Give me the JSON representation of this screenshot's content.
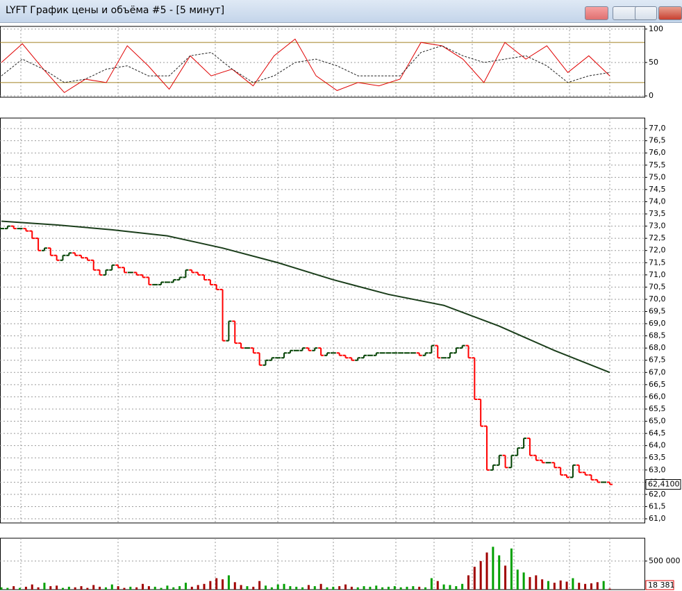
{
  "window": {
    "title": "LYFT График цены и объёма #5 - [5 минут]"
  },
  "chart_data": [
    {
      "type": "line",
      "ylim": [
        -2,
        104
      ],
      "yticks": [
        0,
        50,
        100
      ],
      "levels": [
        20,
        80
      ],
      "level_color": "#a08020",
      "series": [
        {
          "color": "#e00000",
          "dash": false,
          "values": [
            50,
            78,
            40,
            5,
            25,
            20,
            75,
            45,
            10,
            60,
            30,
            40,
            15,
            60,
            85,
            30,
            8,
            20,
            15,
            25,
            80,
            75,
            55,
            20,
            80,
            55,
            75,
            35,
            60,
            30
          ]
        },
        {
          "color": "#202020",
          "dash": true,
          "values": [
            30,
            55,
            40,
            20,
            25,
            40,
            45,
            30,
            30,
            60,
            65,
            40,
            20,
            30,
            50,
            55,
            45,
            30,
            30,
            30,
            65,
            75,
            60,
            50,
            55,
            60,
            45,
            20,
            30,
            35
          ]
        }
      ]
    },
    {
      "type": "price",
      "ylim": [
        60.83,
        77.43
      ],
      "yticks": [
        {
          "value": 61,
          "label": "61,0"
        },
        {
          "value": 61.5,
          "label": "61,5"
        },
        {
          "value": 62,
          "label": "62,0"
        },
        {
          "value": 62.5,
          "label": "62,5"
        },
        {
          "value": 63,
          "label": "63,0"
        },
        {
          "value": 63.5,
          "label": "63,5"
        },
        {
          "value": 64,
          "label": "64,0"
        },
        {
          "value": 64.5,
          "label": "64,5"
        },
        {
          "value": 65,
          "label": "65,0"
        },
        {
          "value": 65.5,
          "label": "65,5"
        },
        {
          "value": 66,
          "label": "66,0"
        },
        {
          "value": 66.5,
          "label": "66,5"
        },
        {
          "value": 67,
          "label": "67,0"
        },
        {
          "value": 67.5,
          "label": "67,5"
        },
        {
          "value": 68,
          "label": "68,0"
        },
        {
          "value": 68.5,
          "label": "68,5"
        },
        {
          "value": 69,
          "label": "69,0"
        },
        {
          "value": 69.5,
          "label": "69,5"
        },
        {
          "value": 70,
          "label": "70,0"
        },
        {
          "value": 70.5,
          "label": "70,5"
        },
        {
          "value": 71,
          "label": "71,0"
        },
        {
          "value": 71.5,
          "label": "71,5"
        },
        {
          "value": 72,
          "label": "72,0"
        },
        {
          "value": 72.5,
          "label": "72,5"
        },
        {
          "value": 73,
          "label": "73,0"
        },
        {
          "value": 73.5,
          "label": "73,5"
        },
        {
          "value": 74,
          "label": "74,0"
        },
        {
          "value": 74.5,
          "label": "74,5"
        },
        {
          "value": 75,
          "label": "75,0"
        },
        {
          "value": 75.5,
          "label": "75,5"
        },
        {
          "value": 76,
          "label": "76,0"
        },
        {
          "value": 76.5,
          "label": "76,5"
        },
        {
          "value": 77,
          "label": "77,0"
        }
      ],
      "up_color": "#004000",
      "down_color": "#ff0000",
      "ma_color": "#1a3d1a",
      "values": [
        72.9,
        73.0,
        72.9,
        72.9,
        72.8,
        72.5,
        72.0,
        72.1,
        71.8,
        71.6,
        71.8,
        71.9,
        71.8,
        71.7,
        71.6,
        71.2,
        71.0,
        71.2,
        71.4,
        71.3,
        71.1,
        71.1,
        71.0,
        70.9,
        70.6,
        70.6,
        70.7,
        70.7,
        70.8,
        70.9,
        71.2,
        71.1,
        71.0,
        70.8,
        70.6,
        70.4,
        68.3,
        69.1,
        68.2,
        68.0,
        68.0,
        67.8,
        67.3,
        67.5,
        67.6,
        67.6,
        67.8,
        67.9,
        67.9,
        68.0,
        67.9,
        68.0,
        67.7,
        67.8,
        67.8,
        67.7,
        67.6,
        67.5,
        67.6,
        67.7,
        67.7,
        67.8,
        67.8,
        67.8,
        67.8,
        67.8,
        67.8,
        67.8,
        67.7,
        67.8,
        68.1,
        67.6,
        67.6,
        67.8,
        68.0,
        68.1,
        67.6,
        65.9,
        64.8,
        63.0,
        63.2,
        63.6,
        63.1,
        63.6,
        63.9,
        64.3,
        63.6,
        63.4,
        63.3,
        63.3,
        63.1,
        62.8,
        62.7,
        63.2,
        62.9,
        62.8,
        62.6,
        62.5,
        62.5,
        62.41
      ],
      "ma": [
        73.2,
        73.05,
        72.85,
        72.6,
        72.1,
        71.5,
        70.8,
        70.2,
        69.75,
        68.9,
        67.9,
        67.0
      ],
      "last": {
        "value": 62.41,
        "label": "62,4100"
      }
    },
    {
      "type": "volume",
      "ylim": [
        0,
        900000
      ],
      "yticks": [
        {
          "value": 500000,
          "label": "500 000"
        }
      ],
      "up_color": "#00a000",
      "down_color": "#a00000",
      "values": [
        40000,
        30000,
        60000,
        30000,
        50000,
        90000,
        40000,
        120000,
        60000,
        70000,
        30000,
        50000,
        40000,
        60000,
        30000,
        80000,
        50000,
        40000,
        90000,
        60000,
        30000,
        50000,
        40000,
        100000,
        60000,
        50000,
        30000,
        70000,
        40000,
        60000,
        120000,
        50000,
        80000,
        100000,
        150000,
        200000,
        180000,
        250000,
        130000,
        80000,
        60000,
        50000,
        150000,
        70000,
        40000,
        90000,
        100000,
        60000,
        50000,
        40000,
        80000,
        60000,
        100000,
        40000,
        50000,
        60000,
        90000,
        50000,
        40000,
        60000,
        50000,
        70000,
        40000,
        50000,
        60000,
        40000,
        50000,
        60000,
        50000,
        40000,
        200000,
        150000,
        90000,
        80000,
        60000,
        100000,
        250000,
        400000,
        500000,
        650000,
        750000,
        600000,
        420000,
        720000,
        350000,
        300000,
        220000,
        250000,
        180000,
        150000,
        120000,
        160000,
        140000,
        200000,
        120000,
        100000,
        110000,
        130000,
        150000,
        18381
      ],
      "last": {
        "value": 18381,
        "label": "18 381"
      }
    }
  ]
}
